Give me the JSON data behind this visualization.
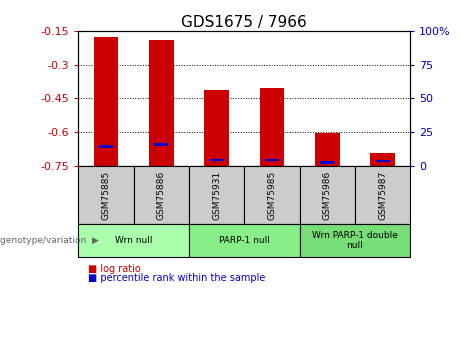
{
  "title": "GDS1675 / 7966",
  "samples": [
    "GSM75885",
    "GSM75886",
    "GSM75931",
    "GSM75985",
    "GSM75986",
    "GSM75987"
  ],
  "log_ratio": [
    -0.175,
    -0.19,
    -0.415,
    -0.405,
    -0.605,
    -0.695
  ],
  "percentile_rank_value": [
    -0.665,
    -0.655,
    -0.725,
    -0.725,
    -0.735,
    -0.73
  ],
  "ylim": [
    -0.75,
    -0.15
  ],
  "yticks_left": [
    -0.75,
    -0.6,
    -0.45,
    -0.3,
    -0.15
  ],
  "yticks_right": [
    0,
    25,
    50,
    75,
    100
  ],
  "bar_bottom": -0.75,
  "bar_color": "#cc0000",
  "blue_color": "#0000cc",
  "genotype_groups": [
    {
      "label": "Wrn null",
      "count": 2,
      "color": "#aaffaa"
    },
    {
      "label": "PARP-1 null",
      "count": 2,
      "color": "#88ee88"
    },
    {
      "label": "Wrn PARP-1 double\nnull",
      "count": 2,
      "color": "#77dd77"
    }
  ],
  "legend_items": [
    {
      "label": "log ratio",
      "color": "#cc0000"
    },
    {
      "label": "percentile rank within the sample",
      "color": "#0000cc"
    }
  ],
  "title_fontsize": 11,
  "axis_label_color_left": "#cc0000",
  "axis_label_color_right": "#0000bb",
  "genotype_label": "genotype/variation",
  "background_color": "#ffffff",
  "plot_bg": "#ffffff",
  "bar_width": 0.45,
  "blue_bar_width": 0.25,
  "blue_bar_height": 0.012,
  "sample_box_color": "#cccccc"
}
